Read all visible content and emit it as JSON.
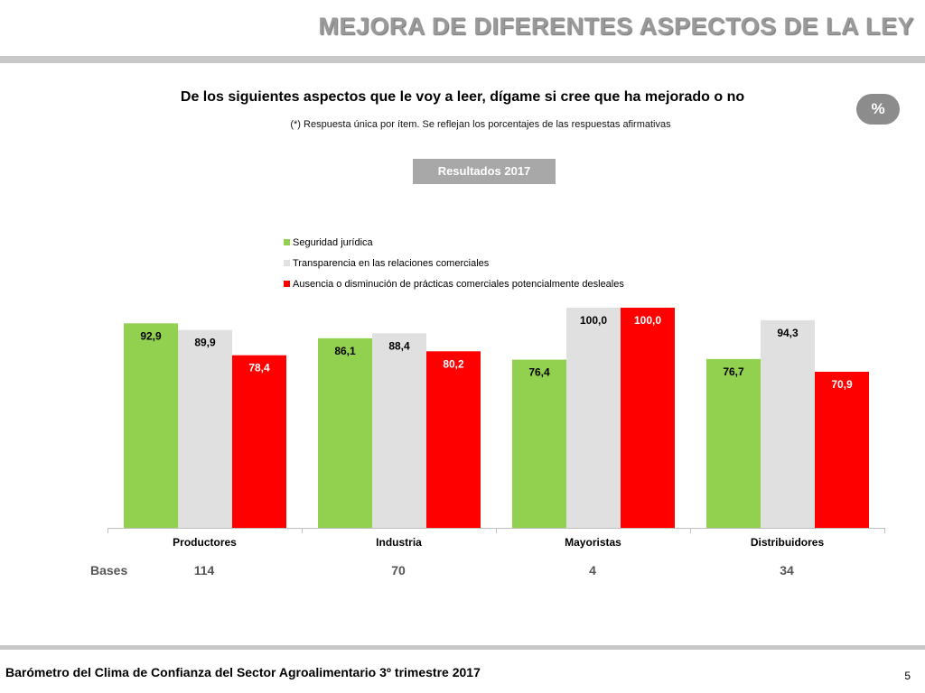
{
  "slide": {
    "title": "MEJORA DE DIFERENTES ASPECTOS DE LA LEY",
    "question": "De los siguientes aspectos que le voy a leer, dígame si cree que ha mejorado o no",
    "note": "(*) Respuesta única por ítem. Se reflejan los porcentajes de las respuestas afirmativas",
    "percent_badge": "%",
    "results_label": "Resultados 2017"
  },
  "bases": {
    "label": "Bases",
    "values": [
      "114",
      "70",
      "4",
      "34"
    ]
  },
  "footer": {
    "text": "Barómetro del Clima de Confianza del Sector Agroalimentario 3º trimestre 2017",
    "page": "5"
  },
  "colors": {
    "green": "#92d050",
    "grey": "#e0e0e0",
    "red": "#ff0000"
  },
  "chart_data": {
    "type": "bar",
    "categories": [
      "Productores",
      "Industria",
      "Mayoristas",
      "Distribuidores"
    ],
    "series": [
      {
        "name": "Seguridad jurídica",
        "values": [
          92.9,
          86.1,
          76.4,
          76.7
        ],
        "labels": [
          "92,9",
          "86,1",
          "76,4",
          "76,7"
        ],
        "color": "#92d050",
        "label_color": "#000000"
      },
      {
        "name": "Transparencia en las relaciones comerciales",
        "values": [
          89.9,
          88.4,
          100.0,
          94.3
        ],
        "labels": [
          "89,9",
          "88,4",
          "100,0",
          "94,3"
        ],
        "color": "#e0e0e0",
        "label_color": "#000000"
      },
      {
        "name": "Ausencia o disminución de prácticas comerciales potencialmente desleales",
        "values": [
          78.4,
          80.2,
          100.0,
          70.9
        ],
        "labels": [
          "78,4",
          "80,2",
          "100,0",
          "70,9"
        ],
        "color": "#ff0000",
        "label_color": "#ffffff"
      }
    ],
    "ylim": [
      0,
      100
    ],
    "grid": false,
    "legend": "top-center"
  }
}
